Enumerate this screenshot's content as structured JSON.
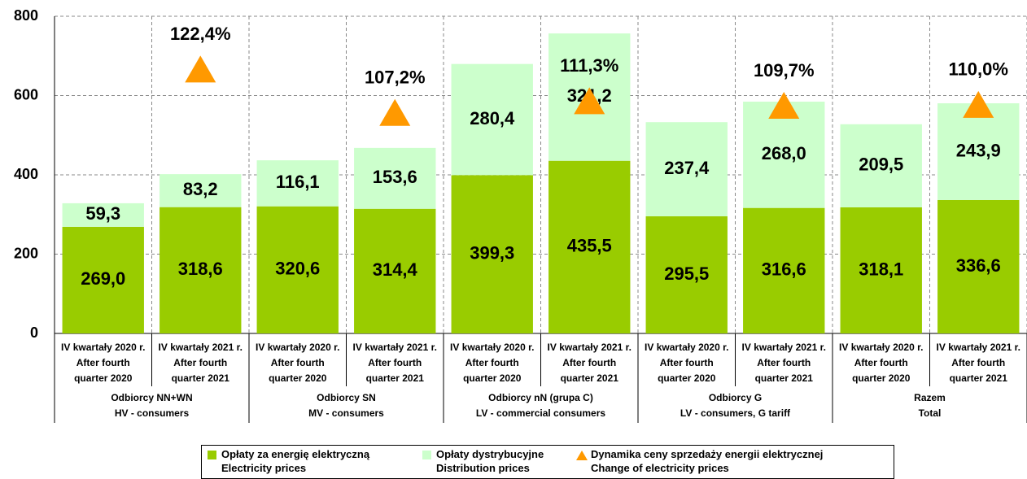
{
  "chart_data": {
    "type": "bar",
    "stacked": true,
    "categories": [
      "IV kwartały 2020 r.\nAfter fourth\nquarter 2020",
      "IV kwartały 2021 r.\nAfter fourth\nquarter 2021",
      "IV kwartały 2020 r.\nAfter fourth\nquarter 2020",
      "IV kwartały 2021 r.\nAfter fourth\nquarter 2021",
      "IV kwartały 2020 r.\nAfter fourth\nquarter 2020",
      "IV kwartały 2021 r.\nAfter fourth\nquarter 2021",
      "IV kwartały 2020 r.\nAfter fourth\nquarter 2020",
      "IV kwartały 2021 r.\nAfter fourth\nquarter 2021",
      "IV kwartały 2020 r.\nAfter fourth\nquarter 2020",
      "IV kwartały 2021 r.\nAfter fourth\nquarter 2021"
    ],
    "groups": [
      "Odbiorcy NN+WN\nHV - consumers",
      "Odbiorcy SN\nMV - consumers",
      "Odbiorcy nN (grupa C)\nLV - commercial consumers",
      "Odbiorcy G\nLV - consumers, G tariff",
      "Razem\nTotal"
    ],
    "series": [
      {
        "name": "Opłaty za energię elektryczną\nElectricity prices",
        "color": "#99cc00",
        "values": [
          269.0,
          318.6,
          320.6,
          314.4,
          399.3,
          435.5,
          295.5,
          316.6,
          318.1,
          336.6
        ],
        "value_labels": [
          "269,0",
          "318,6",
          "320,6",
          "314,4",
          "399,3",
          "435,5",
          "295,5",
          "316,6",
          "318,1",
          "336,6"
        ]
      },
      {
        "name": "Opłaty dystrybucyjne\nDistribution prices",
        "color": "#ccffcc",
        "values": [
          59.3,
          83.2,
          116.1,
          153.6,
          280.4,
          321.2,
          237.4,
          268.0,
          209.5,
          243.9
        ],
        "value_labels": [
          "59,3",
          "83,2",
          "116,1",
          "153,6",
          "280,4",
          "321,2",
          "237,4",
          "268,0",
          "209,5",
          "243,9"
        ]
      },
      {
        "name": "Dynamika ceny sprzedaży energii elektrycznej\nChange of electricity prices",
        "color": "#ff9900",
        "type": "marker",
        "axis": "y2",
        "values": [
          null,
          122.4,
          null,
          107.2,
          null,
          111.3,
          null,
          109.7,
          null,
          110.0
        ],
        "value_labels": [
          null,
          "122,4%",
          null,
          "107,2%",
          null,
          "111,3%",
          null,
          "109,7%",
          null,
          "110,0%"
        ]
      }
    ],
    "ylim": [
      0,
      800
    ],
    "yticks": [
      0,
      200,
      400,
      600,
      800
    ],
    "y2lim": [
      30,
      141
    ],
    "grid": true
  }
}
